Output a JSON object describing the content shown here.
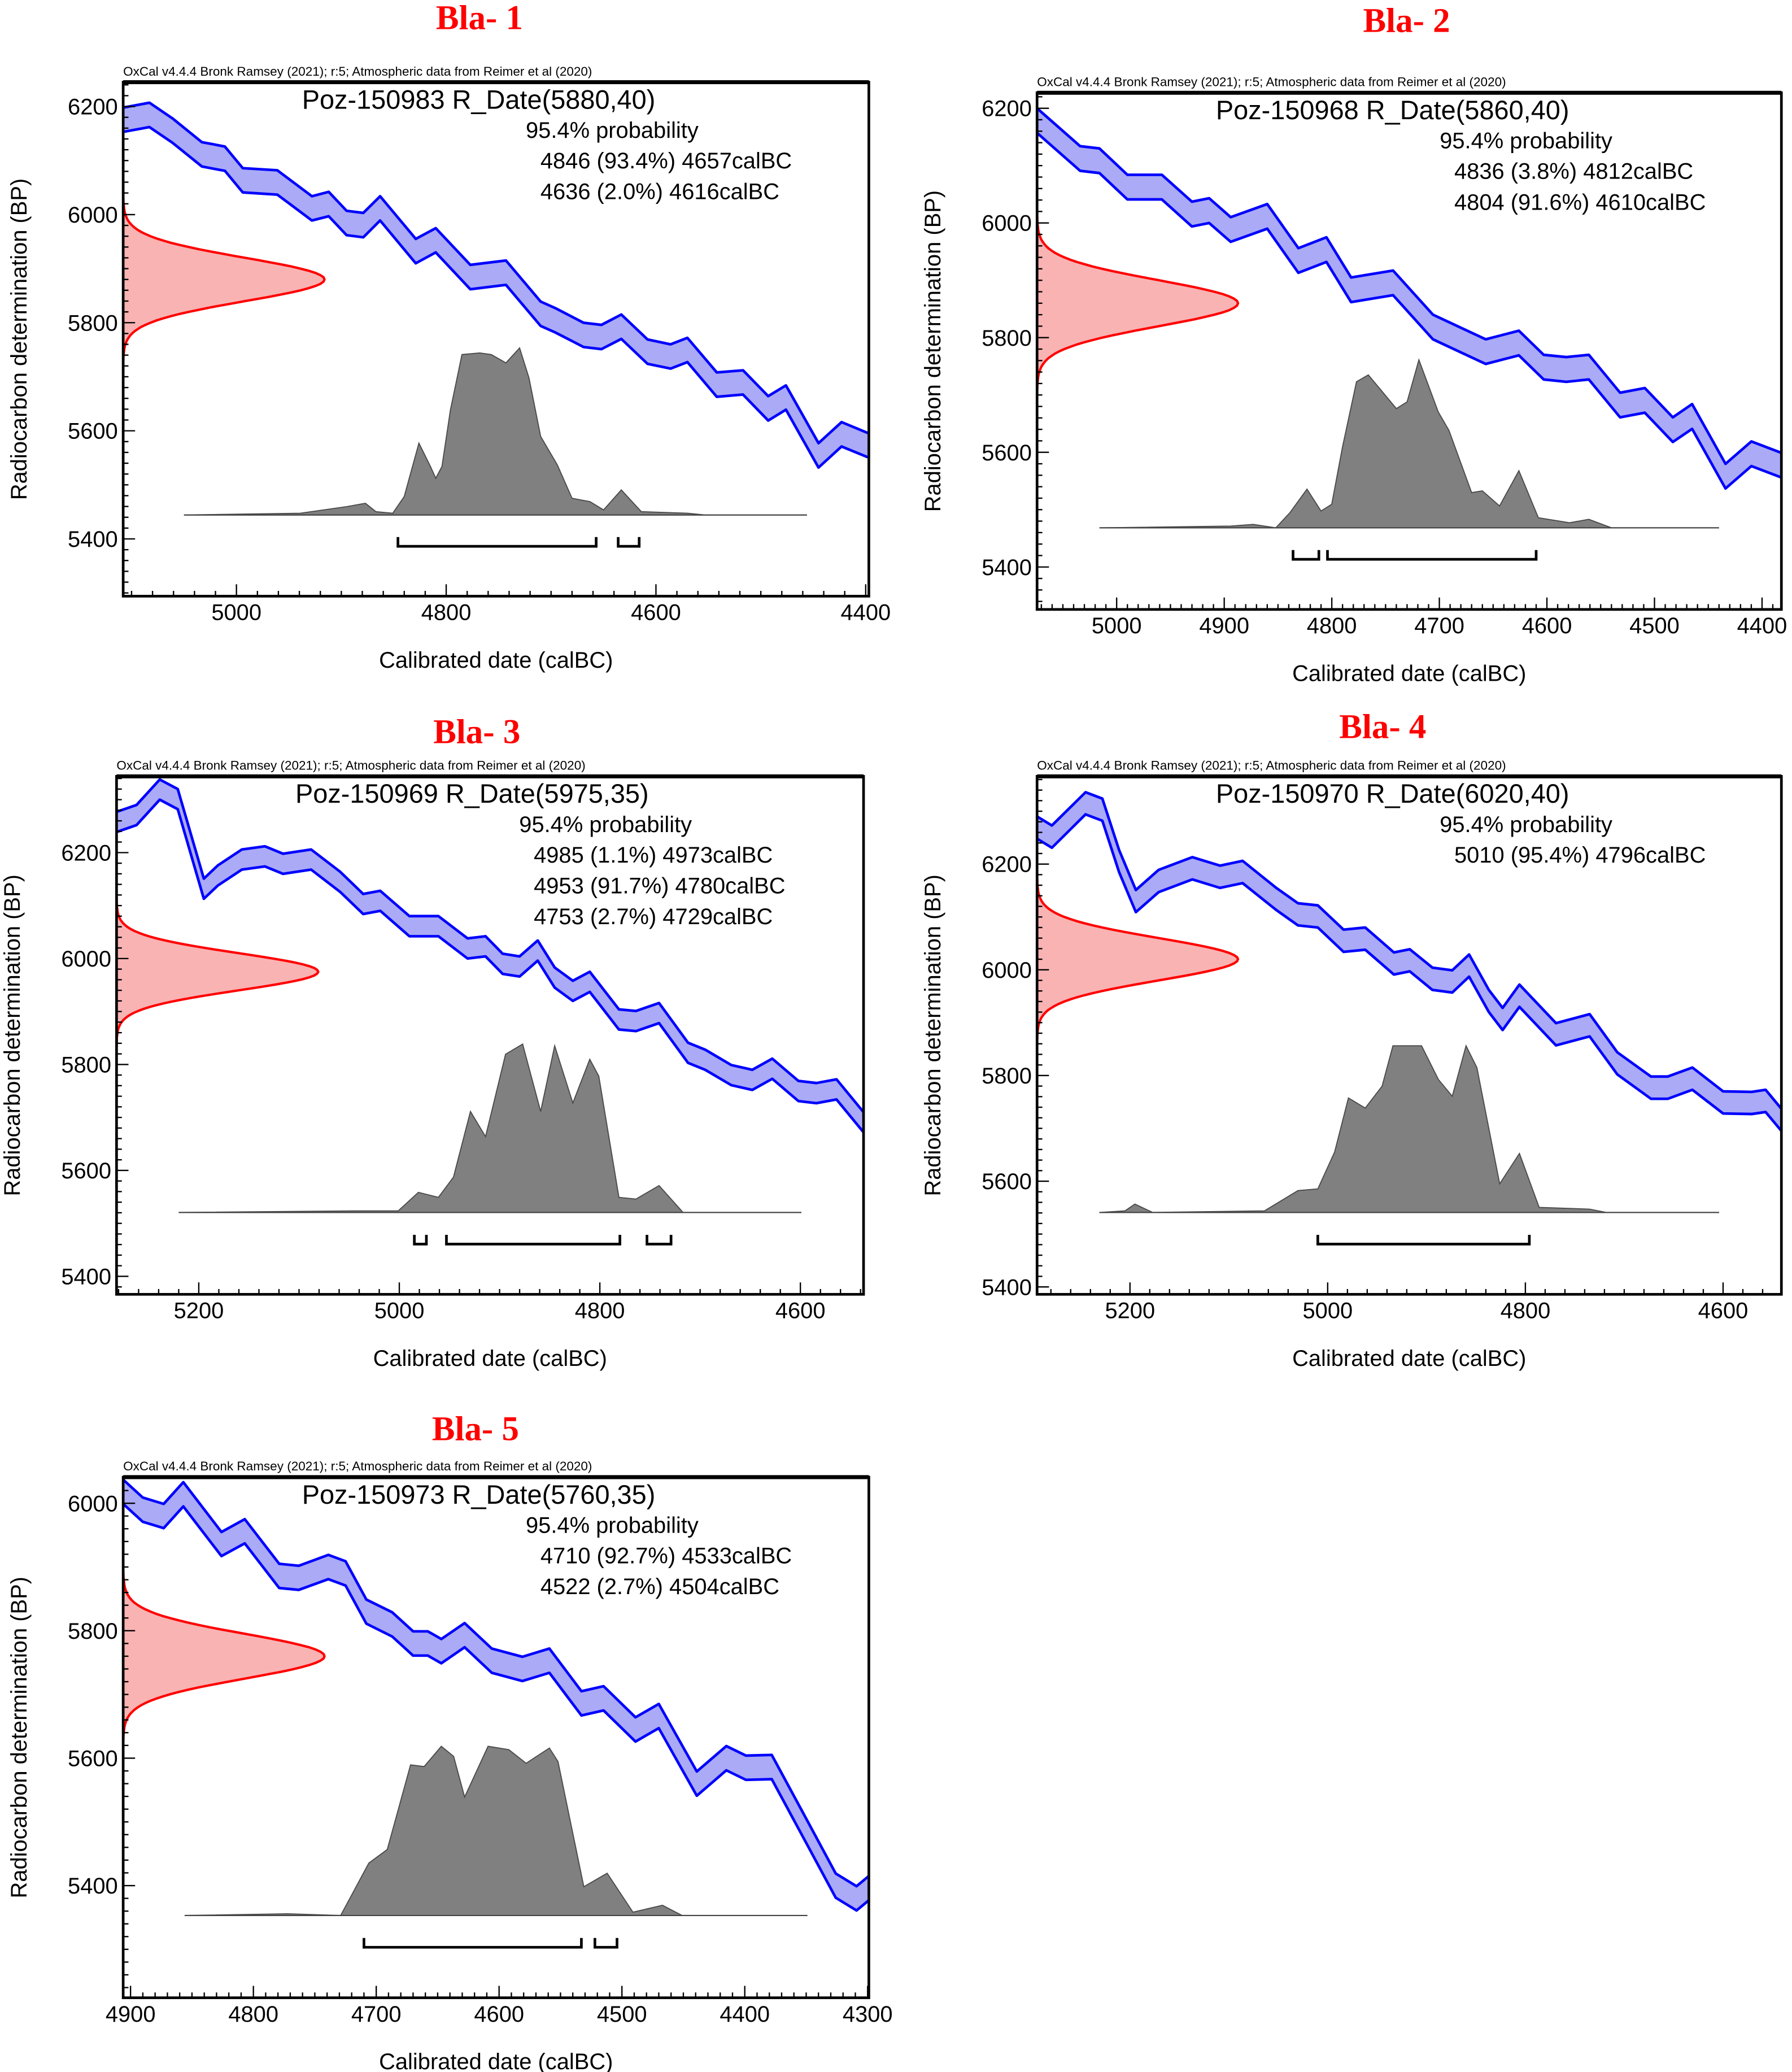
{
  "chart_data": [
    {
      "type": "area",
      "title": "Bla- 1",
      "header": "OxCal v4.4.4 Bronk Ramsey (2021); r:5; Atmospheric data from Reimer et al (2020)",
      "sample_label": "Poz-150983 R_Date(5880,40)",
      "r_date": {
        "mean": 5880,
        "sd": 40
      },
      "probability_label": "95.4% probability",
      "ranges": [
        "4846 (93.4%) 4657calBC",
        "4636 (2.0%) 4616calBC"
      ],
      "intervals": [
        [
          4846,
          4657
        ],
        [
          4636,
          4616
        ]
      ],
      "xlabel": "Calibrated date (calBC)",
      "ylabel": "Radiocarbon determination (BP)",
      "xlim": [
        5108,
        4397
      ],
      "ylim": [
        5294,
        6245
      ],
      "xticks": [
        "5000",
        "4800",
        "4600",
        "4400"
      ],
      "x_minor_step": 20,
      "yticks": [
        "5400",
        "5600",
        "5800",
        "6000",
        "6200"
      ],
      "y_minor_step": 20,
      "curve_band_bp": 45,
      "curve_upper": [
        [
          5108,
          6198
        ],
        [
          5083,
          6207
        ],
        [
          5061,
          6178
        ],
        [
          5033,
          6134
        ],
        [
          5022,
          6130
        ],
        [
          5011,
          6126
        ],
        [
          4994,
          6086
        ],
        [
          4961,
          6082
        ],
        [
          4928,
          6034
        ],
        [
          4912,
          6042
        ],
        [
          4895,
          6007
        ],
        [
          4879,
          6003
        ],
        [
          4863,
          6034
        ],
        [
          4829,
          5955
        ],
        [
          4810,
          5975
        ],
        [
          4777,
          5907
        ],
        [
          4743,
          5915
        ],
        [
          4710,
          5839
        ],
        [
          4696,
          5827
        ],
        [
          4669,
          5800
        ],
        [
          4652,
          5796
        ],
        [
          4633,
          5815
        ],
        [
          4608,
          5769
        ],
        [
          4586,
          5760
        ],
        [
          4570,
          5772
        ],
        [
          4542,
          5708
        ],
        [
          4517,
          5712
        ],
        [
          4493,
          5664
        ],
        [
          4476,
          5684
        ],
        [
          4445,
          5577
        ],
        [
          4423,
          5616
        ],
        [
          4398,
          5596
        ]
      ],
      "distribution": [
        [
          5050,
          0
        ],
        [
          4939,
          0.01
        ],
        [
          4895,
          0.05
        ],
        [
          4877,
          0.07
        ],
        [
          4867,
          0.02
        ],
        [
          4851,
          0.01
        ],
        [
          4840,
          0.11
        ],
        [
          4826,
          0.43
        ],
        [
          4815,
          0.29
        ],
        [
          4810,
          0.22
        ],
        [
          4804,
          0.29
        ],
        [
          4796,
          0.63
        ],
        [
          4785,
          0.96
        ],
        [
          4768,
          0.97
        ],
        [
          4757,
          0.96
        ],
        [
          4743,
          0.91
        ],
        [
          4730,
          1.0
        ],
        [
          4721,
          0.82
        ],
        [
          4710,
          0.47
        ],
        [
          4694,
          0.3
        ],
        [
          4680,
          0.1
        ],
        [
          4663,
          0.08
        ],
        [
          4650,
          0.03
        ],
        [
          4633,
          0.15
        ],
        [
          4614,
          0.02
        ],
        [
          4570,
          0.01
        ],
        [
          4553,
          0
        ],
        [
          4456,
          0
        ]
      ]
    },
    {
      "type": "area",
      "title": "Bla- 2",
      "header": "OxCal v4.4.4 Bronk Ramsey (2021); r:5; Atmospheric data from Reimer et al (2020)",
      "sample_label": "Poz-150968 R_Date(5860,40)",
      "r_date": {
        "mean": 5860,
        "sd": 40
      },
      "probability_label": "95.4% probability",
      "ranges": [
        "4836 (3.8%) 4812calBC",
        "4804 (91.6%) 4610calBC"
      ],
      "intervals": [
        [
          4836,
          4812
        ],
        [
          4804,
          4610
        ]
      ],
      "xlabel": "Calibrated date (calBC)",
      "ylabel": "Radiocarbon determination (BP)",
      "xlim": [
        5074,
        4382
      ],
      "ylim": [
        5326,
        6227
      ],
      "xticks": [
        "5000",
        "4900",
        "4800",
        "4700",
        "4600",
        "4500",
        "4400"
      ],
      "x_minor_step": 10,
      "yticks": [
        "5400",
        "5600",
        "5800",
        "6000",
        "6200"
      ],
      "y_minor_step": 20,
      "curve_band_bp": 43,
      "curve_upper": [
        [
          5074,
          6200
        ],
        [
          5034,
          6134
        ],
        [
          5016,
          6130
        ],
        [
          4990,
          6084
        ],
        [
          4958,
          6084
        ],
        [
          4930,
          6037
        ],
        [
          4914,
          6043
        ],
        [
          4894,
          6010
        ],
        [
          4860,
          6033
        ],
        [
          4831,
          5956
        ],
        [
          4805,
          5975
        ],
        [
          4782,
          5905
        ],
        [
          4743,
          5917
        ],
        [
          4706,
          5840
        ],
        [
          4657,
          5797
        ],
        [
          4626,
          5812
        ],
        [
          4603,
          5770
        ],
        [
          4582,
          5766
        ],
        [
          4561,
          5770
        ],
        [
          4532,
          5704
        ],
        [
          4509,
          5712
        ],
        [
          4483,
          5661
        ],
        [
          4465,
          5684
        ],
        [
          4434,
          5580
        ],
        [
          4410,
          5619
        ],
        [
          4382,
          5599
        ]
      ],
      "distribution": [
        [
          5016,
          0
        ],
        [
          4894,
          0.01
        ],
        [
          4873,
          0.02
        ],
        [
          4852,
          0
        ],
        [
          4839,
          0.09
        ],
        [
          4823,
          0.23
        ],
        [
          4810,
          0.1
        ],
        [
          4800,
          0.14
        ],
        [
          4790,
          0.48
        ],
        [
          4777,
          0.87
        ],
        [
          4766,
          0.91
        ],
        [
          4740,
          0.71
        ],
        [
          4730,
          0.75
        ],
        [
          4719,
          1.0
        ],
        [
          4701,
          0.69
        ],
        [
          4691,
          0.58
        ],
        [
          4670,
          0.21
        ],
        [
          4660,
          0.22
        ],
        [
          4644,
          0.13
        ],
        [
          4626,
          0.34
        ],
        [
          4608,
          0.06
        ],
        [
          4579,
          0.03
        ],
        [
          4561,
          0.05
        ],
        [
          4540,
          0
        ],
        [
          4440,
          0
        ]
      ]
    },
    {
      "type": "area",
      "title": "Bla- 3",
      "header": "OxCal v4.4.4 Bronk Ramsey (2021); r:5; Atmospheric data from Reimer et al (2020)",
      "sample_label": "Poz-150969 R_Date(5975,35)",
      "r_date": {
        "mean": 5975,
        "sd": 35
      },
      "probability_label": "95.4% probability",
      "ranges": [
        "4985 (1.1%) 4973calBC",
        "4953 (91.7%) 4780calBC",
        "4753 (2.7%) 4729calBC"
      ],
      "intervals": [
        [
          4985,
          4973
        ],
        [
          4953,
          4780
        ],
        [
          4753,
          4729
        ]
      ],
      "xlabel": "Calibrated date (calBC)",
      "ylabel": "Radiocarbon determination (BP)",
      "xlim": [
        5282,
        4537
      ],
      "ylim": [
        5366,
        6344
      ],
      "xticks": [
        "5200",
        "5000",
        "4800",
        "4600"
      ],
      "x_minor_step": 20,
      "yticks": [
        "5400",
        "5600",
        "5800",
        "6000",
        "6200"
      ],
      "y_minor_step": 20,
      "curve_band_bp": 38,
      "curve_upper": [
        [
          5282,
          6277
        ],
        [
          5262,
          6290
        ],
        [
          5239,
          6338
        ],
        [
          5221,
          6320
        ],
        [
          5195,
          6151
        ],
        [
          5181,
          6176
        ],
        [
          5157,
          6206
        ],
        [
          5134,
          6212
        ],
        [
          5116,
          6198
        ],
        [
          5088,
          6206
        ],
        [
          5059,
          6164
        ],
        [
          5036,
          6122
        ],
        [
          5019,
          6128
        ],
        [
          4990,
          6080
        ],
        [
          4961,
          6080
        ],
        [
          4932,
          6038
        ],
        [
          4914,
          6042
        ],
        [
          4897,
          6009
        ],
        [
          4880,
          6004
        ],
        [
          4862,
          6034
        ],
        [
          4845,
          5983
        ],
        [
          4827,
          5958
        ],
        [
          4810,
          5975
        ],
        [
          4781,
          5904
        ],
        [
          4764,
          5901
        ],
        [
          4741,
          5916
        ],
        [
          4712,
          5841
        ],
        [
          4695,
          5828
        ],
        [
          4669,
          5799
        ],
        [
          4648,
          5790
        ],
        [
          4628,
          5811
        ],
        [
          4602,
          5769
        ],
        [
          4584,
          5765
        ],
        [
          4564,
          5772
        ],
        [
          4537,
          5710
        ]
      ],
      "distribution": [
        [
          5220,
          0
        ],
        [
          5042,
          0.01
        ],
        [
          5001,
          0.01
        ],
        [
          4981,
          0.12
        ],
        [
          4961,
          0.09
        ],
        [
          4946,
          0.21
        ],
        [
          4929,
          0.6
        ],
        [
          4914,
          0.45
        ],
        [
          4894,
          0.94
        ],
        [
          4877,
          1.0
        ],
        [
          4859,
          0.6
        ],
        [
          4845,
          0.99
        ],
        [
          4827,
          0.65
        ],
        [
          4810,
          0.91
        ],
        [
          4801,
          0.81
        ],
        [
          4781,
          0.09
        ],
        [
          4764,
          0.08
        ],
        [
          4741,
          0.16
        ],
        [
          4717,
          0
        ],
        [
          4599,
          0
        ]
      ]
    },
    {
      "type": "area",
      "title": "Bla- 4",
      "header": "OxCal v4.4.4 Bronk Ramsey (2021); r:5; Atmospheric data from Reimer et al (2020)",
      "sample_label": "Poz-150970 R_Date(6020,40)",
      "r_date": {
        "mean": 6020,
        "sd": 40
      },
      "probability_label": "95.4% probability",
      "ranges": [
        "5010 (95.4%) 4796calBC"
      ],
      "intervals": [
        [
          5010,
          4796
        ]
      ],
      "xlabel": "Calibrated date (calBC)",
      "ylabel": "Radiocarbon determination (BP)",
      "xlim": [
        5294,
        4541
      ],
      "ylim": [
        5386,
        6366
      ],
      "xticks": [
        "5200",
        "5000",
        "4800",
        "4600"
      ],
      "x_minor_step": 20,
      "yticks": [
        "5400",
        "5600",
        "5800",
        "6000",
        "6200"
      ],
      "y_minor_step": 20,
      "curve_band_bp": 42,
      "curve_upper": [
        [
          5294,
          6290
        ],
        [
          5279,
          6273
        ],
        [
          5245,
          6336
        ],
        [
          5228,
          6324
        ],
        [
          5211,
          6227
        ],
        [
          5194,
          6151
        ],
        [
          5171,
          6189
        ],
        [
          5137,
          6213
        ],
        [
          5109,
          6197
        ],
        [
          5086,
          6206
        ],
        [
          5052,
          6155
        ],
        [
          5030,
          6126
        ],
        [
          5010,
          6122
        ],
        [
          4984,
          6076
        ],
        [
          4962,
          6080
        ],
        [
          4933,
          6033
        ],
        [
          4917,
          6039
        ],
        [
          4894,
          6004
        ],
        [
          4874,
          5999
        ],
        [
          4857,
          6029
        ],
        [
          4837,
          5962
        ],
        [
          4823,
          5928
        ],
        [
          4806,
          5972
        ],
        [
          4769,
          5899
        ],
        [
          4735,
          5916
        ],
        [
          4707,
          5844
        ],
        [
          4673,
          5798
        ],
        [
          4656,
          5798
        ],
        [
          4631,
          5815
        ],
        [
          4600,
          5770
        ],
        [
          4571,
          5769
        ],
        [
          4557,
          5773
        ],
        [
          4540,
          5735
        ]
      ],
      "distribution": [
        [
          5231,
          0
        ],
        [
          5205,
          0.01
        ],
        [
          5195,
          0.05
        ],
        [
          5177,
          0
        ],
        [
          5064,
          0.01
        ],
        [
          5030,
          0.13
        ],
        [
          5010,
          0.14
        ],
        [
          4993,
          0.36
        ],
        [
          4979,
          0.68
        ],
        [
          4962,
          0.62
        ],
        [
          4945,
          0.75
        ],
        [
          4934,
          0.99
        ],
        [
          4905,
          0.99
        ],
        [
          4888,
          0.79
        ],
        [
          4874,
          0.69
        ],
        [
          4860,
          0.99
        ],
        [
          4849,
          0.86
        ],
        [
          4826,
          0.17
        ],
        [
          4806,
          0.35
        ],
        [
          4786,
          0.03
        ],
        [
          4735,
          0.02
        ],
        [
          4718,
          0
        ],
        [
          4604,
          0
        ]
      ]
    },
    {
      "type": "area",
      "title": "Bla- 5",
      "header": "OxCal v4.4.4 Bronk Ramsey (2021); r:5; Atmospheric data from Reimer et al (2020)",
      "sample_label": "Poz-150973 R_Date(5760,35)",
      "r_date": {
        "mean": 5760,
        "sd": 35
      },
      "probability_label": "95.4% probability",
      "ranges": [
        "4710 (92.7%) 4533calBC",
        "4522 (2.7%) 4504calBC"
      ],
      "intervals": [
        [
          4710,
          4533
        ],
        [
          4522,
          4504
        ]
      ],
      "xlabel": "Calibrated date (calBC)",
      "ylabel": "Radiocarbon determination (BP)",
      "xlim": [
        4906,
        4299
      ],
      "ylim": [
        5224,
        6041
      ],
      "xticks": [
        "4900",
        "4800",
        "4700",
        "4600",
        "4500",
        "4400",
        "4300"
      ],
      "x_minor_step": 10,
      "yticks": [
        "5400",
        "5600",
        "5800",
        "6000"
      ],
      "y_minor_step": 20,
      "curve_band_bp": 38,
      "curve_upper": [
        [
          4906,
          6037
        ],
        [
          4890,
          6009
        ],
        [
          4873,
          5999
        ],
        [
          4857,
          6033
        ],
        [
          4826,
          5955
        ],
        [
          4807,
          5975
        ],
        [
          4779,
          5905
        ],
        [
          4763,
          5902
        ],
        [
          4739,
          5919
        ],
        [
          4725,
          5909
        ],
        [
          4708,
          5849
        ],
        [
          4687,
          5829
        ],
        [
          4670,
          5799
        ],
        [
          4658,
          5799
        ],
        [
          4647,
          5787
        ],
        [
          4628,
          5812
        ],
        [
          4606,
          5772
        ],
        [
          4581,
          5759
        ],
        [
          4559,
          5772
        ],
        [
          4533,
          5705
        ],
        [
          4515,
          5713
        ],
        [
          4489,
          5664
        ],
        [
          4470,
          5685
        ],
        [
          4439,
          5579
        ],
        [
          4415,
          5619
        ],
        [
          4399,
          5604
        ],
        [
          4378,
          5605
        ],
        [
          4350,
          5505
        ],
        [
          4326,
          5419
        ],
        [
          4309,
          5399
        ],
        [
          4299,
          5415
        ]
      ],
      "distribution": [
        [
          4856,
          0
        ],
        [
          4772,
          0.01
        ],
        [
          4729,
          0
        ],
        [
          4706,
          0.31
        ],
        [
          4691,
          0.39
        ],
        [
          4672,
          0.89
        ],
        [
          4661,
          0.88
        ],
        [
          4647,
          1.0
        ],
        [
          4637,
          0.94
        ],
        [
          4628,
          0.7
        ],
        [
          4609,
          1.0
        ],
        [
          4592,
          0.98
        ],
        [
          4578,
          0.9
        ],
        [
          4559,
          0.99
        ],
        [
          4552,
          0.91
        ],
        [
          4531,
          0.17
        ],
        [
          4512,
          0.25
        ],
        [
          4491,
          0.02
        ],
        [
          4467,
          0.06
        ],
        [
          4451,
          0
        ],
        [
          4349,
          0
        ]
      ]
    }
  ],
  "colors": {
    "title": "#ff0000",
    "likelihood_line": "#ff0000",
    "likelihood_fill": "#f9b3b3",
    "curve_line": "#0000ff",
    "curve_fill": "#aaaaf6",
    "posterior_fill": "#808080"
  }
}
